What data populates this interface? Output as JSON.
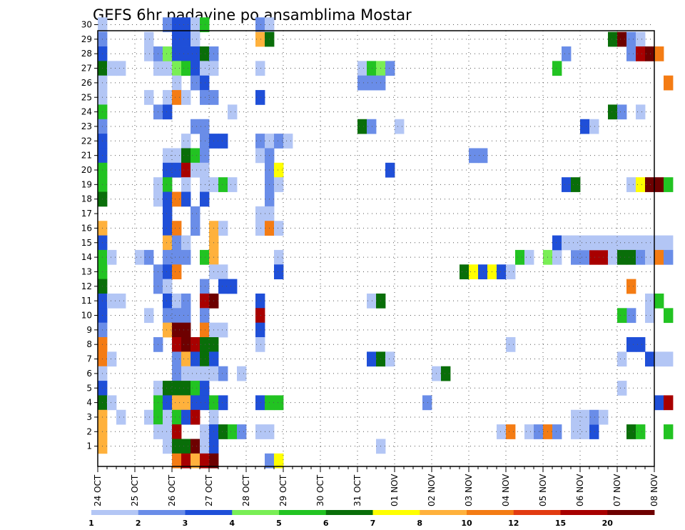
{
  "chart_data": {
    "type": "heatmap",
    "title": "GEFS 6hr padavine po ansamblima Mostar",
    "grid": true,
    "x_tick_labels": [
      "24 OCT",
      "25 OCT",
      "26 OCT",
      "27 OCT",
      "28 OCT",
      "29 OCT",
      "30 OCT",
      "31 OCT",
      "01 NOV",
      "02 NOV",
      "03 NOV",
      "04 NOV",
      "05 NOV",
      "06 NOV",
      "07 NOV",
      "08 NOV"
    ],
    "y_tick_labels": [
      "1",
      "2",
      "3",
      "4",
      "5",
      "6",
      "7",
      "8",
      "9",
      "10",
      "11",
      "12",
      "13",
      "14",
      "15",
      "16",
      "17",
      "18",
      "19",
      "20",
      "21",
      "22",
      "23",
      "24",
      "25",
      "26",
      "27",
      "28",
      "29",
      "30"
    ],
    "x_steps_per_day": 4,
    "legend": {
      "placement": "bottom",
      "labels": [
        "1",
        "2",
        "3",
        "4",
        "5",
        "6",
        "7",
        "8",
        "10",
        "12",
        "15",
        "20"
      ],
      "colors": [
        "#b3c6f5",
        "#6a8de8",
        "#1f4fd8",
        "#79ee55",
        "#22c322",
        "#096e09",
        "#ffff00",
        "#ffb13c",
        "#f47c14",
        "#e23b11",
        "#a80000",
        "#6e0000"
      ]
    },
    "cells": [
      [
        0,
        30,
        1
      ],
      [
        0,
        29,
        2
      ],
      [
        0,
        28,
        3
      ],
      [
        0,
        27,
        6
      ],
      [
        0,
        26,
        1
      ],
      [
        0,
        25,
        1
      ],
      [
        0,
        24,
        5
      ],
      [
        0,
        23,
        2
      ],
      [
        0,
        22,
        3
      ],
      [
        0,
        21,
        3
      ],
      [
        0,
        20,
        5
      ],
      [
        0,
        19,
        5
      ],
      [
        0,
        18,
        6
      ],
      [
        0,
        16,
        8
      ],
      [
        0,
        15,
        3
      ],
      [
        0,
        14,
        5
      ],
      [
        0,
        13,
        5
      ],
      [
        0,
        12,
        6
      ],
      [
        0,
        11,
        3
      ],
      [
        0,
        10,
        3
      ],
      [
        0,
        9,
        2
      ],
      [
        0,
        8,
        10
      ],
      [
        0,
        7,
        10
      ],
      [
        0,
        6,
        1
      ],
      [
        0,
        5,
        3
      ],
      [
        0,
        4,
        6
      ],
      [
        0,
        3,
        8
      ],
      [
        0,
        2,
        8
      ],
      [
        0,
        1,
        8
      ],
      [
        1,
        27,
        1
      ],
      [
        1,
        14,
        1
      ],
      [
        1,
        11,
        1
      ],
      [
        1,
        7,
        1
      ],
      [
        1,
        4,
        1
      ],
      [
        2,
        27,
        1
      ],
      [
        2,
        11,
        1
      ],
      [
        2,
        3,
        1
      ],
      [
        4,
        14,
        1
      ],
      [
        5,
        29,
        1
      ],
      [
        5,
        28,
        1
      ],
      [
        5,
        25,
        1
      ],
      [
        5,
        14,
        2
      ],
      [
        5,
        10,
        1
      ],
      [
        5,
        3,
        1
      ],
      [
        6,
        27,
        1
      ],
      [
        6,
        28,
        2
      ],
      [
        6,
        24,
        2
      ],
      [
        6,
        19,
        1
      ],
      [
        6,
        18,
        1
      ],
      [
        6,
        13,
        2
      ],
      [
        6,
        12,
        2
      ],
      [
        6,
        8,
        2
      ],
      [
        6,
        5,
        1
      ],
      [
        6,
        4,
        5
      ],
      [
        6,
        3,
        5
      ],
      [
        6,
        2,
        1
      ],
      [
        7,
        27,
        1
      ],
      [
        7,
        28,
        4
      ],
      [
        7,
        25,
        1
      ],
      [
        7,
        24,
        3
      ],
      [
        7,
        21,
        1
      ],
      [
        7,
        20,
        3
      ],
      [
        7,
        19,
        5
      ],
      [
        7,
        18,
        3
      ],
      [
        7,
        17,
        3
      ],
      [
        7,
        16,
        3
      ],
      [
        7,
        15,
        8
      ],
      [
        7,
        14,
        2
      ],
      [
        7,
        13,
        3
      ],
      [
        7,
        12,
        1
      ],
      [
        7,
        11,
        3
      ],
      [
        7,
        10,
        2
      ],
      [
        7,
        9,
        8
      ],
      [
        7,
        5,
        6
      ],
      [
        7,
        4,
        3
      ],
      [
        7,
        3,
        1
      ],
      [
        7,
        2,
        1
      ],
      [
        7,
        1,
        1
      ],
      [
        7,
        30,
        2
      ],
      [
        8,
        30,
        3
      ],
      [
        8,
        29,
        3
      ],
      [
        8,
        28,
        3
      ],
      [
        8,
        27,
        4
      ],
      [
        8,
        26,
        1
      ],
      [
        8,
        25,
        10
      ],
      [
        8,
        21,
        1
      ],
      [
        8,
        20,
        3
      ],
      [
        8,
        18,
        10
      ],
      [
        8,
        16,
        10
      ],
      [
        8,
        15,
        2
      ],
      [
        8,
        14,
        2
      ],
      [
        8,
        13,
        10
      ],
      [
        8,
        11,
        1
      ],
      [
        8,
        10,
        2
      ],
      [
        8,
        9,
        20
      ],
      [
        8,
        8,
        15
      ],
      [
        8,
        7,
        2
      ],
      [
        8,
        6,
        2
      ],
      [
        8,
        5,
        6
      ],
      [
        8,
        4,
        8
      ],
      [
        8,
        3,
        5
      ],
      [
        8,
        2,
        15
      ],
      [
        8,
        1,
        6
      ],
      [
        8,
        0,
        10
      ],
      [
        9,
        30,
        3
      ],
      [
        9,
        29,
        3
      ],
      [
        9,
        28,
        3
      ],
      [
        9,
        27,
        5
      ],
      [
        9,
        25,
        1
      ],
      [
        9,
        22,
        1
      ],
      [
        9,
        21,
        6
      ],
      [
        9,
        20,
        15
      ],
      [
        9,
        19,
        1
      ],
      [
        9,
        18,
        3
      ],
      [
        9,
        15,
        1
      ],
      [
        9,
        14,
        2
      ],
      [
        9,
        11,
        2
      ],
      [
        9,
        10,
        2
      ],
      [
        9,
        9,
        20
      ],
      [
        9,
        8,
        20
      ],
      [
        9,
        7,
        8
      ],
      [
        9,
        6,
        1
      ],
      [
        9,
        5,
        6
      ],
      [
        9,
        4,
        8
      ],
      [
        9,
        3,
        3
      ],
      [
        9,
        1,
        6
      ],
      [
        9,
        0,
        15
      ],
      [
        10,
        30,
        1
      ],
      [
        10,
        29,
        1
      ],
      [
        10,
        28,
        3
      ],
      [
        10,
        27,
        3
      ],
      [
        10,
        26,
        2
      ],
      [
        10,
        23,
        2
      ],
      [
        10,
        21,
        5
      ],
      [
        10,
        20,
        1
      ],
      [
        10,
        17,
        2
      ],
      [
        10,
        16,
        2
      ],
      [
        10,
        8,
        15
      ],
      [
        10,
        7,
        3
      ],
      [
        10,
        6,
        1
      ],
      [
        10,
        5,
        5
      ],
      [
        10,
        4,
        3
      ],
      [
        10,
        3,
        15
      ],
      [
        10,
        1,
        20
      ],
      [
        10,
        0,
        8
      ],
      [
        11,
        30,
        5
      ],
      [
        11,
        28,
        6
      ],
      [
        11,
        27,
        1
      ],
      [
        11,
        26,
        3
      ],
      [
        11,
        25,
        2
      ],
      [
        11,
        23,
        2
      ],
      [
        11,
        22,
        2
      ],
      [
        11,
        21,
        2
      ],
      [
        11,
        20,
        1
      ],
      [
        11,
        19,
        1
      ],
      [
        11,
        18,
        3
      ],
      [
        11,
        14,
        5
      ],
      [
        11,
        12,
        2
      ],
      [
        11,
        11,
        15
      ],
      [
        11,
        10,
        2
      ],
      [
        11,
        9,
        10
      ],
      [
        11,
        8,
        6
      ],
      [
        11,
        7,
        6
      ],
      [
        11,
        6,
        1
      ],
      [
        11,
        5,
        3
      ],
      [
        11,
        4,
        3
      ],
      [
        11,
        2,
        1
      ],
      [
        11,
        1,
        1
      ],
      [
        11,
        0,
        15
      ],
      [
        12,
        28,
        2
      ],
      [
        12,
        27,
        1
      ],
      [
        12,
        25,
        2
      ],
      [
        12,
        22,
        3
      ],
      [
        12,
        19,
        1
      ],
      [
        12,
        16,
        8
      ],
      [
        12,
        15,
        8
      ],
      [
        12,
        14,
        8
      ],
      [
        12,
        13,
        1
      ],
      [
        12,
        11,
        20
      ],
      [
        12,
        9,
        1
      ],
      [
        12,
        8,
        6
      ],
      [
        12,
        7,
        3
      ],
      [
        12,
        6,
        1
      ],
      [
        12,
        4,
        5
      ],
      [
        12,
        3,
        1
      ],
      [
        12,
        2,
        3
      ],
      [
        12,
        1,
        3
      ],
      [
        12,
        0,
        20
      ],
      [
        13,
        22,
        3
      ],
      [
        13,
        19,
        5
      ],
      [
        13,
        16,
        1
      ],
      [
        13,
        13,
        1
      ],
      [
        13,
        12,
        3
      ],
      [
        13,
        9,
        1
      ],
      [
        13,
        6,
        2
      ],
      [
        13,
        4,
        3
      ],
      [
        13,
        2,
        6
      ],
      [
        14,
        24,
        1
      ],
      [
        14,
        19,
        1
      ],
      [
        14,
        12,
        3
      ],
      [
        14,
        2,
        5
      ],
      [
        15,
        6,
        1
      ],
      [
        15,
        2,
        2
      ],
      [
        17,
        30,
        2
      ],
      [
        17,
        29,
        8
      ],
      [
        17,
        27,
        1
      ],
      [
        17,
        25,
        3
      ],
      [
        17,
        22,
        2
      ],
      [
        17,
        21,
        1
      ],
      [
        17,
        17,
        1
      ],
      [
        17,
        16,
        1
      ],
      [
        17,
        11,
        3
      ],
      [
        17,
        10,
        15
      ],
      [
        17,
        9,
        3
      ],
      [
        17,
        8,
        1
      ],
      [
        17,
        4,
        3
      ],
      [
        17,
        2,
        1
      ],
      [
        18,
        30,
        1
      ],
      [
        18,
        29,
        6
      ],
      [
        18,
        22,
        1
      ],
      [
        18,
        21,
        2
      ],
      [
        18,
        20,
        2
      ],
      [
        18,
        19,
        2
      ],
      [
        18,
        18,
        2
      ],
      [
        18,
        17,
        1
      ],
      [
        18,
        16,
        10
      ],
      [
        18,
        4,
        5
      ],
      [
        18,
        2,
        1
      ],
      [
        18,
        0,
        2
      ],
      [
        19,
        22,
        2
      ],
      [
        19,
        20,
        7
      ],
      [
        19,
        19,
        1
      ],
      [
        19,
        16,
        1
      ],
      [
        19,
        14,
        1
      ],
      [
        19,
        13,
        3
      ],
      [
        19,
        4,
        5
      ],
      [
        19,
        0,
        7
      ],
      [
        20,
        22,
        1
      ],
      [
        28,
        27,
        1
      ],
      [
        28,
        26,
        2
      ],
      [
        28,
        23,
        6
      ],
      [
        29,
        27,
        5
      ],
      [
        29,
        26,
        2
      ],
      [
        29,
        23,
        2
      ],
      [
        29,
        11,
        1
      ],
      [
        29,
        7,
        3
      ],
      [
        30,
        27,
        4
      ],
      [
        30,
        26,
        2
      ],
      [
        30,
        11,
        6
      ],
      [
        30,
        7,
        6
      ],
      [
        30,
        1,
        1
      ],
      [
        31,
        27,
        2
      ],
      [
        31,
        20,
        3
      ],
      [
        31,
        7,
        1
      ],
      [
        32,
        23,
        1
      ],
      [
        35,
        4,
        2
      ],
      [
        36,
        6,
        1
      ],
      [
        37,
        6,
        6
      ],
      [
        39,
        13,
        6
      ],
      [
        40,
        13,
        7
      ],
      [
        40,
        21,
        2
      ],
      [
        41,
        13,
        3
      ],
      [
        41,
        21,
        2
      ],
      [
        42,
        13,
        7
      ],
      [
        43,
        13,
        3
      ],
      [
        44,
        13,
        1
      ],
      [
        44,
        8,
        1
      ],
      [
        43,
        2,
        1
      ],
      [
        44,
        2,
        10
      ],
      [
        45,
        14,
        5
      ],
      [
        46,
        14,
        1
      ],
      [
        46,
        2,
        1
      ],
      [
        47,
        2,
        2
      ],
      [
        48,
        14,
        4
      ],
      [
        48,
        2,
        10
      ],
      [
        49,
        14,
        1
      ],
      [
        49,
        15,
        3
      ],
      [
        49,
        2,
        2
      ],
      [
        49,
        27,
        5
      ],
      [
        50,
        28,
        2
      ],
      [
        50,
        19,
        3
      ],
      [
        51,
        19,
        6
      ],
      [
        51,
        14,
        2
      ],
      [
        51,
        2,
        1
      ],
      [
        52,
        14,
        2
      ],
      [
        52,
        2,
        1
      ],
      [
        53,
        14,
        15
      ],
      [
        53,
        2,
        3
      ],
      [
        54,
        14,
        15
      ],
      [
        50,
        15,
        1
      ],
      [
        51,
        15,
        1
      ],
      [
        52,
        15,
        1
      ],
      [
        53,
        15,
        1
      ],
      [
        54,
        15,
        1
      ],
      [
        55,
        15,
        1
      ],
      [
        56,
        15,
        1
      ],
      [
        57,
        15,
        1
      ],
      [
        58,
        15,
        1
      ],
      [
        59,
        15,
        1
      ],
      [
        60,
        15,
        1
      ],
      [
        61,
        15,
        1
      ],
      [
        52,
        23,
        3
      ],
      [
        53,
        23,
        1
      ],
      [
        51,
        3,
        1
      ],
      [
        52,
        3,
        1
      ],
      [
        53,
        3,
        2
      ],
      [
        54,
        3,
        1
      ],
      [
        55,
        14,
        1
      ],
      [
        56,
        14,
        6
      ],
      [
        57,
        14,
        6
      ],
      [
        58,
        14,
        2
      ],
      [
        59,
        14,
        1
      ],
      [
        60,
        14,
        10
      ],
      [
        61,
        14,
        2
      ],
      [
        55,
        29,
        6
      ],
      [
        55,
        24,
        6
      ],
      [
        56,
        29,
        20
      ],
      [
        56,
        24,
        2
      ],
      [
        57,
        29,
        2
      ],
      [
        57,
        28,
        2
      ],
      [
        57,
        19,
        1
      ],
      [
        57,
        12,
        10
      ],
      [
        57,
        10,
        2
      ],
      [
        57,
        8,
        3
      ],
      [
        57,
        2,
        6
      ],
      [
        56,
        10,
        5
      ],
      [
        56,
        7,
        1
      ],
      [
        56,
        5,
        1
      ],
      [
        58,
        8,
        3
      ],
      [
        58,
        29,
        1
      ],
      [
        58,
        24,
        1
      ],
      [
        58,
        19,
        7
      ],
      [
        58,
        2,
        5
      ],
      [
        58,
        28,
        15
      ],
      [
        59,
        28,
        20
      ],
      [
        59,
        19,
        20
      ],
      [
        59,
        11,
        1
      ],
      [
        59,
        10,
        1
      ],
      [
        59,
        7,
        3
      ],
      [
        60,
        28,
        10
      ],
      [
        60,
        19,
        20
      ],
      [
        60,
        11,
        5
      ],
      [
        60,
        7,
        1
      ],
      [
        60,
        4,
        3
      ],
      [
        61,
        26,
        10
      ],
      [
        61,
        19,
        5
      ],
      [
        61,
        10,
        5
      ],
      [
        61,
        4,
        15
      ],
      [
        61,
        2,
        5
      ],
      [
        61,
        7,
        1
      ]
    ]
  }
}
